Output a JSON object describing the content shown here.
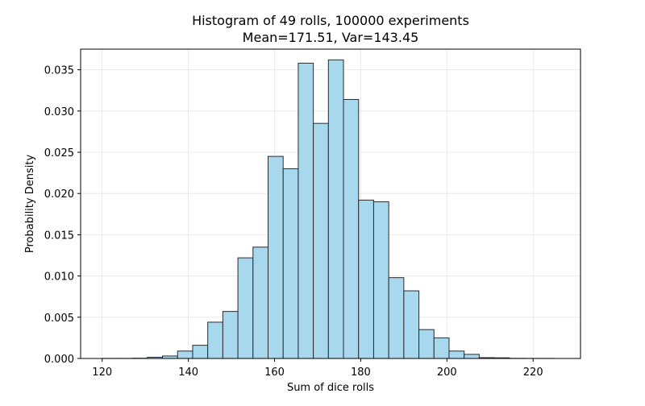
{
  "chart_data": {
    "type": "bar",
    "title_lines": [
      "Histogram of 49 rolls, 100000 experiments",
      "Mean=171.51, Var=143.45"
    ],
    "xlabel": "Sum of dice rolls",
    "ylabel": "Probability Density",
    "xlim": [
      115,
      231
    ],
    "ylim": [
      0,
      0.0375
    ],
    "xticks": [
      120,
      140,
      160,
      180,
      200,
      220
    ],
    "yticks": [
      0.0,
      0.005,
      0.01,
      0.015,
      0.02,
      0.025,
      0.03,
      0.035
    ],
    "ytick_labels": [
      "0.000",
      "0.005",
      "0.010",
      "0.015",
      "0.020",
      "0.025",
      "0.030",
      "0.035"
    ],
    "grid": true,
    "bar_color": "#a8d8ee",
    "edge_color": "#2b2b2b",
    "bins": [
      {
        "x0": 120.0,
        "x1": 123.5,
        "value": 1e-05
      },
      {
        "x0": 123.5,
        "x1": 127.0,
        "value": 1e-05
      },
      {
        "x0": 127.0,
        "x1": 130.5,
        "value": 3e-05
      },
      {
        "x0": 130.5,
        "x1": 134.0,
        "value": 0.00015
      },
      {
        "x0": 134.0,
        "x1": 137.5,
        "value": 0.0003
      },
      {
        "x0": 137.5,
        "x1": 141.0,
        "value": 0.0009
      },
      {
        "x0": 141.0,
        "x1": 144.5,
        "value": 0.0016
      },
      {
        "x0": 144.5,
        "x1": 148.0,
        "value": 0.0044
      },
      {
        "x0": 148.0,
        "x1": 151.5,
        "value": 0.0057
      },
      {
        "x0": 151.5,
        "x1": 155.0,
        "value": 0.0122
      },
      {
        "x0": 155.0,
        "x1": 158.5,
        "value": 0.0135
      },
      {
        "x0": 158.5,
        "x1": 162.0,
        "value": 0.0245
      },
      {
        "x0": 162.0,
        "x1": 165.5,
        "value": 0.023
      },
      {
        "x0": 165.5,
        "x1": 169.0,
        "value": 0.0358
      },
      {
        "x0": 169.0,
        "x1": 172.5,
        "value": 0.0285
      },
      {
        "x0": 172.5,
        "x1": 176.0,
        "value": 0.0362
      },
      {
        "x0": 176.0,
        "x1": 179.5,
        "value": 0.0314
      },
      {
        "x0": 179.5,
        "x1": 183.0,
        "value": 0.0192
      },
      {
        "x0": 183.0,
        "x1": 186.5,
        "value": 0.019
      },
      {
        "x0": 186.5,
        "x1": 190.0,
        "value": 0.0098
      },
      {
        "x0": 190.0,
        "x1": 193.5,
        "value": 0.0082
      },
      {
        "x0": 193.5,
        "x1": 197.0,
        "value": 0.0035
      },
      {
        "x0": 197.0,
        "x1": 200.5,
        "value": 0.0025
      },
      {
        "x0": 200.5,
        "x1": 204.0,
        "value": 0.0009
      },
      {
        "x0": 204.0,
        "x1": 207.5,
        "value": 0.0005
      },
      {
        "x0": 207.5,
        "x1": 211.0,
        "value": 0.0001
      },
      {
        "x0": 211.0,
        "x1": 214.5,
        "value": 8e-05
      },
      {
        "x0": 214.5,
        "x1": 218.0,
        "value": 2e-05
      },
      {
        "x0": 218.0,
        "x1": 221.5,
        "value": 1e-05
      },
      {
        "x0": 221.5,
        "x1": 225.0,
        "value": 1e-05
      }
    ]
  }
}
